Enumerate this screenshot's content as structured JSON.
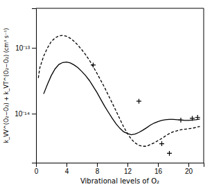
{
  "chart_data": {
    "type": "line",
    "title": "",
    "xlabel": "Vibrational levels of O₂",
    "ylabel": "k_VV^(O₂−O₂) + k_VT^(O₂−O₂)  (cm³ s⁻¹)",
    "log": "y",
    "xlim": [
      0,
      22
    ],
    "ylim": [
      1.8e-15,
      4e-13
    ],
    "xticks": [
      0,
      4,
      8,
      12,
      16,
      20
    ],
    "yticks": [
      {
        "value": 1e-14,
        "label": "10⁻¹⁴"
      },
      {
        "value": 1e-13,
        "label": "10⁻¹³"
      }
    ],
    "series": [
      {
        "type": "line",
        "color": "black",
        "line_style": "solid",
        "x": [
          1.0,
          1.5,
          2.0,
          2.5,
          3.0,
          3.5,
          4.0,
          4.5,
          5.0,
          5.5,
          6.0,
          6.5,
          7.0,
          7.5,
          8.0,
          8.5,
          9.0,
          9.5,
          10.0,
          10.5,
          11.0,
          11.5,
          12.0,
          12.5,
          13.0,
          13.5,
          14.0,
          14.5,
          15.0,
          15.5,
          16.0,
          16.5,
          17.0,
          17.5,
          18.0,
          18.5,
          19.0,
          19.5,
          20.0,
          20.5,
          21.0,
          21.5
        ],
        "values": [
          2e-14,
          2.8e-14,
          3.8e-14,
          4.8e-14,
          5.6e-14,
          6e-14,
          6.1e-14,
          5.9e-14,
          5.5e-14,
          5e-14,
          4.4e-14,
          3.8e-14,
          3.2e-14,
          2.6e-14,
          2.1e-14,
          1.65e-14,
          1.3e-14,
          1.05e-14,
          8.5e-15,
          7e-15,
          6e-15,
          5.3e-15,
          5e-15,
          4.8e-15,
          4.9e-15,
          5.2e-15,
          5.6e-15,
          6.1e-15,
          6.7e-15,
          7.2e-15,
          7.6e-15,
          7.9e-15,
          8.1e-15,
          8.2e-15,
          8.2e-15,
          8.1e-15,
          8e-15,
          7.9e-15,
          7.9e-15,
          8e-15,
          8.1e-15,
          8.3e-15
        ]
      },
      {
        "type": "line",
        "color": "black",
        "line_style": "dashed",
        "x": [
          0.3,
          0.5,
          1.0,
          1.5,
          2.0,
          2.5,
          3.0,
          3.5,
          4.0,
          4.5,
          5.0,
          5.5,
          6.0,
          6.5,
          7.0,
          7.5,
          8.0,
          8.5,
          9.0,
          9.5,
          10.0,
          10.5,
          11.0,
          11.5,
          12.0,
          12.5,
          13.0,
          13.5,
          14.0,
          14.5,
          15.0,
          15.5,
          16.0,
          16.5,
          17.0,
          17.5,
          18.0,
          18.5,
          19.0,
          19.5,
          20.0,
          20.5,
          21.0,
          21.5
        ],
        "values": [
          3.5e-14,
          5e-14,
          7.5e-14,
          1e-13,
          1.25e-13,
          1.42e-13,
          1.52e-13,
          1.55e-13,
          1.5e-13,
          1.4e-13,
          1.26e-13,
          1.1e-13,
          9.4e-14,
          7.9e-14,
          6.5e-14,
          5.2e-14,
          4.1e-14,
          3.2e-14,
          2.5e-14,
          1.9e-14,
          1.45e-14,
          1.1e-14,
          8.3e-15,
          6.3e-15,
          5e-15,
          4.1e-15,
          3.6e-15,
          3.3e-15,
          3.2e-15,
          3.2e-15,
          3.4e-15,
          3.6e-15,
          3.9e-15,
          4.2e-15,
          4.6e-15,
          5e-15,
          5.3e-15,
          5.5e-15,
          5.7e-15,
          5.8e-15,
          5.9e-15,
          6e-15,
          6.2e-15,
          6.4e-15
        ]
      },
      {
        "type": "scatter",
        "color": "black",
        "marker": "+",
        "x": [
          7.5,
          13.5,
          16.5,
          17.5,
          19.0,
          20.5,
          21.2
        ],
        "values": [
          5.5e-14,
          1.55e-14,
          3.5e-15,
          2.5e-15,
          8e-15,
          8.5e-15,
          8.8e-15
        ]
      }
    ]
  }
}
